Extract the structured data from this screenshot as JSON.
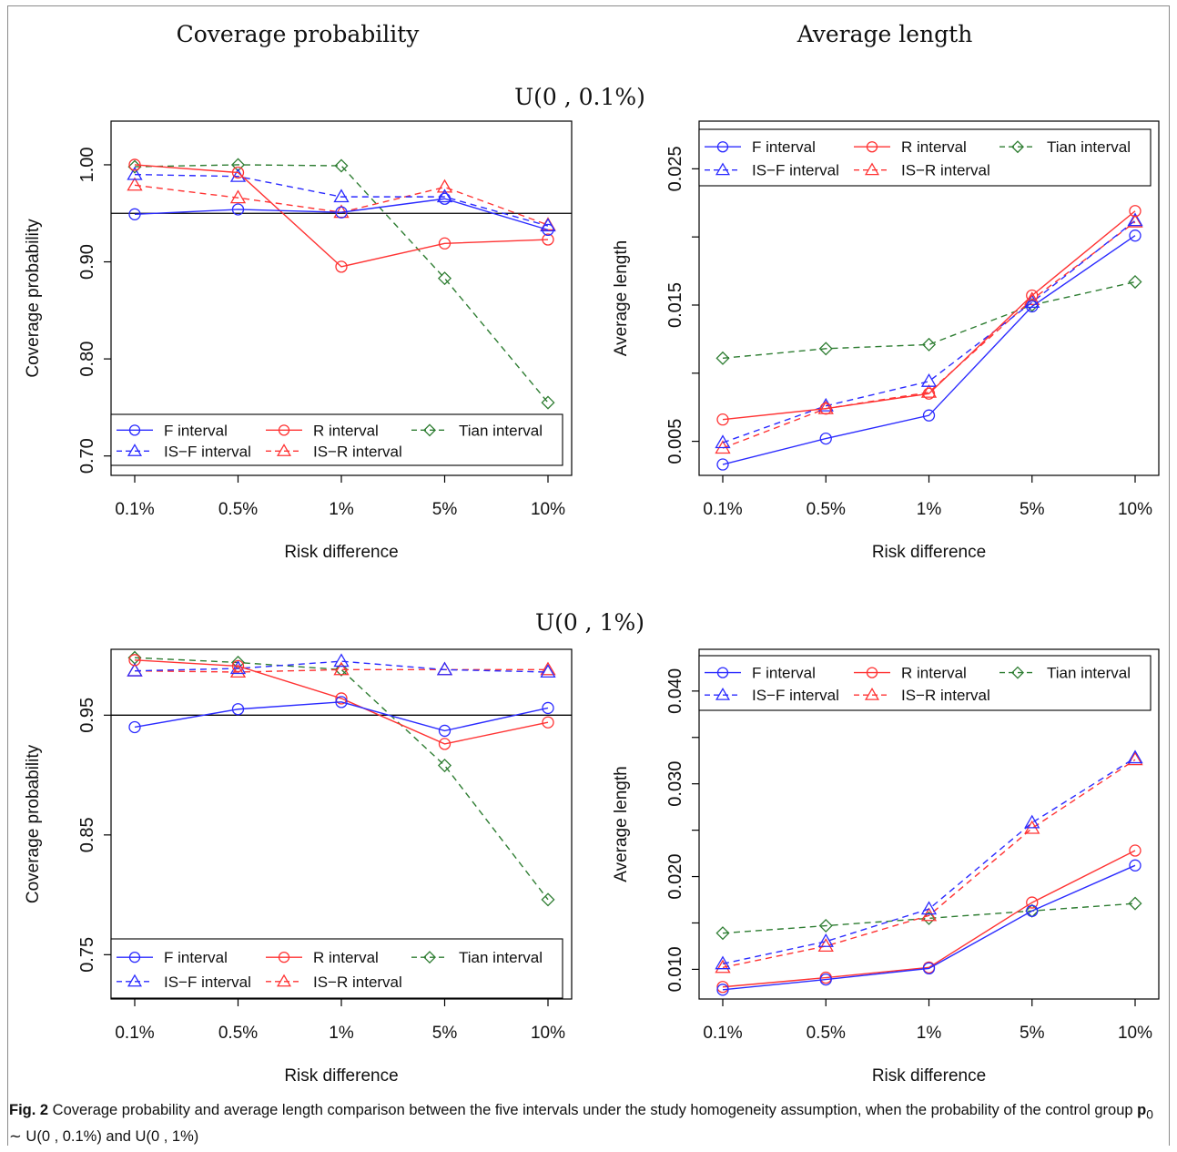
{
  "column_titles": {
    "left": "Coverage probability",
    "right": "Average length"
  },
  "row_titles": {
    "top": "U(0 , 0.1%)",
    "bottom": "U(0 , 1%)"
  },
  "caption": {
    "label": "Fig. 2",
    "text_before": " Coverage probability and average length comparison between the five intervals under the study homogeneity assumption, when the probability of the control group ",
    "symbol": "p",
    "subscript": "0",
    "text_after": " ∼ U(0 , 0.1%) and U(0 , 1%)"
  },
  "colors": {
    "F": "#2b2bff",
    "R": "#ff3333",
    "Tian": "#2e7d32"
  },
  "chart_data": [
    {
      "type": "line",
      "id": "coverage-top",
      "xlabel": "Risk difference",
      "ylabel": "Coverage probability",
      "categories": [
        "0.1%",
        "0.5%",
        "1%",
        "5%",
        "10%"
      ],
      "ylim": [
        0.68,
        1.045
      ],
      "yticks": [
        0.7,
        0.8,
        0.9,
        1.0
      ],
      "ytick_labels": [
        "0.70",
        "0.80",
        "0.90",
        "1.00"
      ],
      "reference_line": 0.95,
      "legend_position": "bottom",
      "series": [
        {
          "name": "F interval",
          "key": "F",
          "values": [
            0.949,
            0.954,
            0.951,
            0.965,
            0.933
          ]
        },
        {
          "name": "R interval",
          "key": "R",
          "values": [
            1.0,
            0.992,
            0.895,
            0.919,
            0.923
          ]
        },
        {
          "name": "Tian interval",
          "key": "Tian",
          "values": [
            0.998,
            1.0,
            0.999,
            0.883,
            0.755
          ]
        },
        {
          "name": "IS−F interval",
          "key": "ISF",
          "values": [
            0.99,
            0.988,
            0.967,
            0.967,
            0.937
          ]
        },
        {
          "name": "IS−R interval",
          "key": "ISR",
          "values": [
            0.979,
            0.966,
            0.951,
            0.977,
            0.938
          ]
        }
      ]
    },
    {
      "type": "line",
      "id": "length-top",
      "xlabel": "Risk difference",
      "ylabel": "Average length",
      "categories": [
        "0.1%",
        "0.5%",
        "1%",
        "5%",
        "10%"
      ],
      "ylim": [
        0.0025,
        0.0285
      ],
      "yticks": [
        0.005,
        0.01,
        0.015,
        0.02,
        0.025
      ],
      "ytick_labels": [
        "0.005",
        "",
        "0.015",
        "",
        "0.025"
      ],
      "legend_position": "top",
      "series": [
        {
          "name": "F interval",
          "key": "F",
          "values": [
            0.0033,
            0.0052,
            0.0069,
            0.0149,
            0.0201
          ]
        },
        {
          "name": "R interval",
          "key": "R",
          "values": [
            0.0066,
            0.0074,
            0.0085,
            0.0157,
            0.0219
          ]
        },
        {
          "name": "Tian interval",
          "key": "Tian",
          "values": [
            0.0111,
            0.0118,
            0.0121,
            0.015,
            0.0167
          ]
        },
        {
          "name": "IS−F interval",
          "key": "ISF",
          "values": [
            0.0049,
            0.0076,
            0.0094,
            0.0152,
            0.0212
          ]
        },
        {
          "name": "IS−R interval",
          "key": "ISR",
          "values": [
            0.0045,
            0.0074,
            0.0086,
            0.0154,
            0.0211
          ]
        }
      ]
    },
    {
      "type": "line",
      "id": "coverage-bottom",
      "xlabel": "Risk difference",
      "ylabel": "Coverage probability",
      "categories": [
        "0.1%",
        "0.5%",
        "1%",
        "5%",
        "10%"
      ],
      "ylim": [
        0.713,
        1.005
      ],
      "yticks": [
        0.75,
        0.85,
        0.95
      ],
      "ytick_labels": [
        "0.75",
        "0.85",
        "0.95"
      ],
      "reference_line": 0.95,
      "legend_position": "bottom",
      "series": [
        {
          "name": "F interval",
          "key": "F",
          "values": [
            0.94,
            0.955,
            0.961,
            0.937,
            0.956
          ]
        },
        {
          "name": "R interval",
          "key": "R",
          "values": [
            0.996,
            0.991,
            0.964,
            0.926,
            0.944
          ]
        },
        {
          "name": "Tian interval",
          "key": "Tian",
          "values": [
            0.998,
            0.994,
            0.988,
            0.908,
            0.796
          ]
        },
        {
          "name": "IS−F interval",
          "key": "ISF",
          "values": [
            0.987,
            0.989,
            0.995,
            0.988,
            0.986
          ]
        },
        {
          "name": "IS−R interval",
          "key": "ISR",
          "values": [
            0.987,
            0.986,
            0.988,
            0.988,
            0.988
          ]
        }
      ]
    },
    {
      "type": "line",
      "id": "length-bottom",
      "xlabel": "Risk difference",
      "ylabel": "Average length",
      "categories": [
        "0.1%",
        "0.5%",
        "1%",
        "5%",
        "10%"
      ],
      "ylim": [
        0.0068,
        0.0445
      ],
      "yticks": [
        0.01,
        0.015,
        0.02,
        0.025,
        0.03,
        0.035,
        0.04
      ],
      "ytick_labels": [
        "0.010",
        "",
        "0.020",
        "",
        "0.030",
        "",
        "0.040"
      ],
      "legend_position": "top",
      "series": [
        {
          "name": "F interval",
          "key": "F",
          "values": [
            0.0078,
            0.0089,
            0.0101,
            0.0163,
            0.0212
          ]
        },
        {
          "name": "R interval",
          "key": "R",
          "values": [
            0.0081,
            0.0091,
            0.0102,
            0.0172,
            0.0228
          ]
        },
        {
          "name": "Tian interval",
          "key": "Tian",
          "values": [
            0.0139,
            0.0147,
            0.0155,
            0.0163,
            0.0171
          ]
        },
        {
          "name": "IS−F interval",
          "key": "ISF",
          "values": [
            0.0106,
            0.013,
            0.0165,
            0.0258,
            0.0328
          ]
        },
        {
          "name": "IS−R interval",
          "key": "ISR",
          "values": [
            0.0102,
            0.0125,
            0.0158,
            0.0252,
            0.0326
          ]
        }
      ]
    }
  ]
}
